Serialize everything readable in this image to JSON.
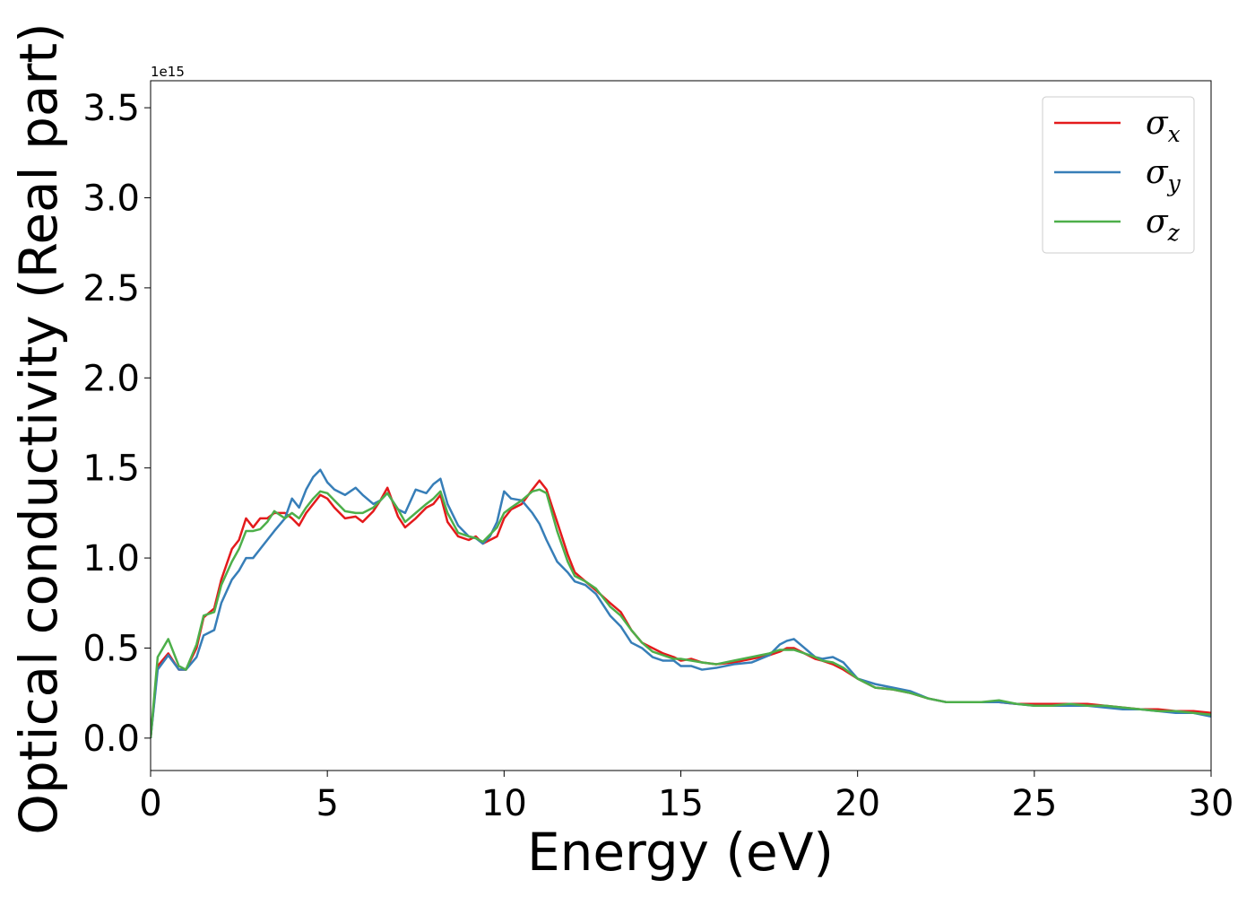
{
  "chart_data": {
    "type": "line",
    "xlabel": "Energy (eV)",
    "ylabel": "Optical conductivity (Real part)",
    "y_offset_text": "1e15",
    "xlim": [
      0,
      30
    ],
    "ylim": [
      -0.18,
      3.65
    ],
    "x_ticks": [
      0,
      5,
      10,
      15,
      20,
      25,
      30
    ],
    "x_tick_labels": [
      "0",
      "5",
      "10",
      "15",
      "20",
      "25",
      "30"
    ],
    "y_ticks": [
      0.0,
      0.5,
      1.0,
      1.5,
      2.0,
      2.5,
      3.0,
      3.5
    ],
    "y_tick_labels": [
      "0.0",
      "0.5",
      "1.0",
      "1.5",
      "2.0",
      "2.5",
      "3.0",
      "3.5"
    ],
    "legend_position": "top-right",
    "grid": false,
    "series": [
      {
        "name": "σ",
        "subscript": "x",
        "color": "#e41a1c",
        "x": [
          0,
          0.2,
          0.5,
          0.8,
          1.0,
          1.3,
          1.5,
          1.8,
          2.0,
          2.3,
          2.5,
          2.7,
          2.9,
          3.1,
          3.3,
          3.5,
          3.8,
          4.0,
          4.2,
          4.4,
          4.6,
          4.8,
          5.0,
          5.2,
          5.5,
          5.8,
          6.0,
          6.3,
          6.5,
          6.7,
          7.0,
          7.2,
          7.5,
          7.8,
          8.0,
          8.2,
          8.4,
          8.7,
          9.0,
          9.2,
          9.4,
          9.6,
          9.8,
          10.0,
          10.2,
          10.5,
          10.8,
          11.0,
          11.2,
          11.5,
          11.8,
          12.0,
          12.3,
          12.6,
          13.0,
          13.3,
          13.6,
          13.9,
          14.2,
          14.5,
          14.8,
          15.0,
          15.3,
          15.6,
          16.0,
          16.5,
          17.0,
          17.5,
          17.8,
          18.0,
          18.2,
          18.5,
          18.8,
          19.0,
          19.3,
          19.6,
          20.0,
          20.5,
          21.0,
          21.5,
          22.0,
          22.5,
          23.0,
          23.5,
          24.0,
          24.5,
          25.0,
          25.5,
          26.0,
          26.5,
          27.0,
          27.5,
          28.0,
          28.5,
          29.0,
          29.5,
          30.0
        ],
        "y": [
          0.0,
          0.4,
          0.47,
          0.38,
          0.38,
          0.5,
          0.67,
          0.72,
          0.88,
          1.05,
          1.1,
          1.22,
          1.17,
          1.22,
          1.22,
          1.25,
          1.25,
          1.22,
          1.18,
          1.25,
          1.3,
          1.35,
          1.33,
          1.28,
          1.22,
          1.23,
          1.2,
          1.26,
          1.32,
          1.39,
          1.23,
          1.17,
          1.22,
          1.28,
          1.3,
          1.35,
          1.2,
          1.12,
          1.1,
          1.12,
          1.08,
          1.1,
          1.12,
          1.22,
          1.27,
          1.3,
          1.38,
          1.43,
          1.38,
          1.2,
          1.02,
          0.92,
          0.87,
          0.82,
          0.75,
          0.7,
          0.6,
          0.53,
          0.5,
          0.47,
          0.45,
          0.43,
          0.44,
          0.42,
          0.41,
          0.42,
          0.44,
          0.46,
          0.48,
          0.5,
          0.5,
          0.47,
          0.44,
          0.43,
          0.41,
          0.38,
          0.33,
          0.28,
          0.27,
          0.25,
          0.22,
          0.2,
          0.2,
          0.2,
          0.2,
          0.19,
          0.19,
          0.19,
          0.19,
          0.19,
          0.18,
          0.17,
          0.16,
          0.16,
          0.15,
          0.15,
          0.14
        ]
      },
      {
        "name": "σ",
        "subscript": "y",
        "color": "#377eb8",
        "x": [
          0,
          0.2,
          0.5,
          0.8,
          1.0,
          1.3,
          1.5,
          1.8,
          2.0,
          2.3,
          2.5,
          2.7,
          2.9,
          3.1,
          3.3,
          3.5,
          3.8,
          4.0,
          4.2,
          4.4,
          4.6,
          4.8,
          5.0,
          5.2,
          5.5,
          5.8,
          6.0,
          6.3,
          6.5,
          6.7,
          7.0,
          7.2,
          7.5,
          7.8,
          8.0,
          8.2,
          8.4,
          8.7,
          9.0,
          9.2,
          9.4,
          9.6,
          9.8,
          10.0,
          10.2,
          10.5,
          10.8,
          11.0,
          11.2,
          11.5,
          11.8,
          12.0,
          12.3,
          12.6,
          13.0,
          13.3,
          13.6,
          13.9,
          14.2,
          14.5,
          14.8,
          15.0,
          15.3,
          15.6,
          16.0,
          16.5,
          17.0,
          17.5,
          17.8,
          18.0,
          18.2,
          18.5,
          18.8,
          19.0,
          19.3,
          19.6,
          20.0,
          20.5,
          21.0,
          21.5,
          22.0,
          22.5,
          23.0,
          23.5,
          24.0,
          24.5,
          25.0,
          25.5,
          26.0,
          26.5,
          27.0,
          27.5,
          28.0,
          28.5,
          29.0,
          29.5,
          30.0
        ],
        "y": [
          0.0,
          0.38,
          0.46,
          0.38,
          0.38,
          0.45,
          0.57,
          0.6,
          0.75,
          0.88,
          0.93,
          1.0,
          1.0,
          1.05,
          1.1,
          1.15,
          1.22,
          1.33,
          1.28,
          1.38,
          1.45,
          1.49,
          1.42,
          1.38,
          1.35,
          1.39,
          1.35,
          1.3,
          1.32,
          1.36,
          1.27,
          1.25,
          1.38,
          1.36,
          1.41,
          1.44,
          1.3,
          1.18,
          1.12,
          1.11,
          1.08,
          1.12,
          1.2,
          1.37,
          1.33,
          1.32,
          1.25,
          1.19,
          1.1,
          0.98,
          0.92,
          0.87,
          0.85,
          0.8,
          0.68,
          0.62,
          0.53,
          0.5,
          0.45,
          0.43,
          0.43,
          0.4,
          0.4,
          0.38,
          0.39,
          0.41,
          0.42,
          0.46,
          0.52,
          0.54,
          0.55,
          0.5,
          0.45,
          0.44,
          0.45,
          0.42,
          0.33,
          0.3,
          0.28,
          0.26,
          0.22,
          0.2,
          0.2,
          0.2,
          0.2,
          0.19,
          0.18,
          0.18,
          0.18,
          0.18,
          0.17,
          0.16,
          0.16,
          0.15,
          0.14,
          0.14,
          0.12
        ]
      },
      {
        "name": "σ",
        "subscript": "z",
        "color": "#4daf4a",
        "x": [
          0,
          0.2,
          0.5,
          0.8,
          1.0,
          1.3,
          1.5,
          1.8,
          2.0,
          2.3,
          2.5,
          2.7,
          2.9,
          3.1,
          3.3,
          3.5,
          3.8,
          4.0,
          4.2,
          4.4,
          4.6,
          4.8,
          5.0,
          5.2,
          5.5,
          5.8,
          6.0,
          6.3,
          6.5,
          6.7,
          7.0,
          7.2,
          7.5,
          7.8,
          8.0,
          8.2,
          8.4,
          8.7,
          9.0,
          9.2,
          9.4,
          9.6,
          9.8,
          10.0,
          10.2,
          10.5,
          10.8,
          11.0,
          11.2,
          11.5,
          11.8,
          12.0,
          12.3,
          12.6,
          13.0,
          13.3,
          13.6,
          13.9,
          14.2,
          14.5,
          14.8,
          15.0,
          15.3,
          15.6,
          16.0,
          16.5,
          17.0,
          17.5,
          17.8,
          18.0,
          18.2,
          18.5,
          18.8,
          19.0,
          19.3,
          19.6,
          20.0,
          20.5,
          21.0,
          21.5,
          22.0,
          22.5,
          23.0,
          23.5,
          24.0,
          24.5,
          25.0,
          25.5,
          26.0,
          26.5,
          27.0,
          27.5,
          28.0,
          28.5,
          29.0,
          29.5,
          30.0
        ],
        "y": [
          0.0,
          0.45,
          0.55,
          0.4,
          0.38,
          0.52,
          0.68,
          0.7,
          0.85,
          0.98,
          1.05,
          1.15,
          1.15,
          1.16,
          1.2,
          1.26,
          1.22,
          1.25,
          1.22,
          1.28,
          1.33,
          1.37,
          1.36,
          1.32,
          1.26,
          1.25,
          1.25,
          1.28,
          1.32,
          1.36,
          1.27,
          1.2,
          1.25,
          1.3,
          1.33,
          1.37,
          1.25,
          1.14,
          1.12,
          1.11,
          1.09,
          1.13,
          1.17,
          1.25,
          1.28,
          1.32,
          1.37,
          1.38,
          1.36,
          1.15,
          0.98,
          0.9,
          0.87,
          0.83,
          0.73,
          0.68,
          0.6,
          0.53,
          0.48,
          0.46,
          0.44,
          0.44,
          0.43,
          0.42,
          0.41,
          0.43,
          0.45,
          0.47,
          0.49,
          0.49,
          0.49,
          0.47,
          0.45,
          0.43,
          0.42,
          0.39,
          0.33,
          0.28,
          0.27,
          0.25,
          0.22,
          0.2,
          0.2,
          0.2,
          0.21,
          0.19,
          0.18,
          0.18,
          0.19,
          0.18,
          0.18,
          0.17,
          0.16,
          0.15,
          0.15,
          0.14,
          0.13
        ]
      }
    ]
  }
}
